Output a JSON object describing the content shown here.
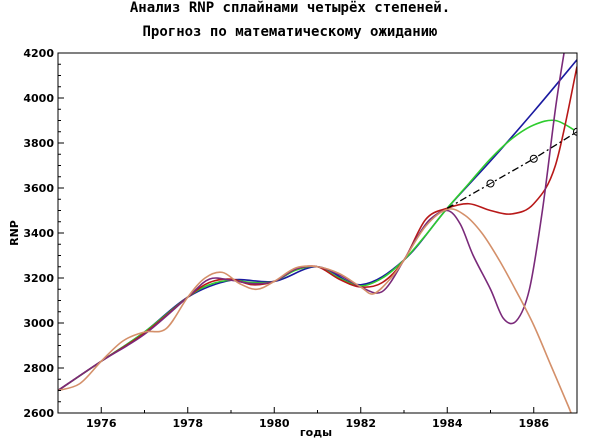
{
  "chart_data": {
    "type": "line",
    "title": "Анализ RNP сплайнами четырёх степеней.",
    "subtitle": "Прогноз по математическому ожиданию",
    "xlabel": "годы",
    "ylabel": "RNP",
    "xlim": [
      1975,
      1987
    ],
    "ylim": [
      2600,
      4200
    ],
    "xticks": [
      "1976",
      "1978",
      "1980",
      "1982",
      "1984",
      "1986"
    ],
    "yticks": [
      "2600",
      "2800",
      "3000",
      "3200",
      "3400",
      "3600",
      "3800",
      "4000",
      "4200"
    ],
    "grid": false,
    "legend": "none",
    "series": [
      {
        "color": "#1a1aa0",
        "style": "solid",
        "x": [
          1975,
          1976,
          1977,
          1978,
          1979,
          1980,
          1981,
          1982,
          1983,
          1984,
          1985,
          1986,
          1987
        ],
        "y": [
          2700,
          2830,
          2960,
          3115,
          3190,
          3185,
          3250,
          3170,
          3280,
          3510,
          3720,
          3940,
          4170
        ]
      },
      {
        "color": "#2ecc2e",
        "style": "solid",
        "x": [
          1975,
          1976,
          1977,
          1978,
          1978.5,
          1979,
          1979.5,
          1980,
          1980.5,
          1981,
          1981.5,
          1982,
          1982.5,
          1983,
          1983.5,
          1984,
          1984.5,
          1985,
          1985.5,
          1986,
          1986.5,
          1987
        ],
        "y": [
          2700,
          2830,
          2960,
          3115,
          3170,
          3190,
          3180,
          3185,
          3235,
          3250,
          3200,
          3165,
          3200,
          3280,
          3390,
          3510,
          3620,
          3730,
          3820,
          3880,
          3900,
          3850
        ]
      },
      {
        "color": "#b81818",
        "style": "solid",
        "x": [
          1975,
          1976,
          1977,
          1978,
          1978.5,
          1979,
          1979.5,
          1980,
          1980.5,
          1981,
          1981.5,
          1982,
          1982.5,
          1983,
          1983.5,
          1984,
          1984.5,
          1985,
          1985.5,
          1986,
          1986.5,
          1987
        ],
        "y": [
          2700,
          2830,
          2955,
          3115,
          3180,
          3195,
          3170,
          3185,
          3240,
          3250,
          3195,
          3160,
          3180,
          3280,
          3460,
          3510,
          3530,
          3500,
          3485,
          3530,
          3700,
          4140
        ]
      },
      {
        "color": "#7a2a7a",
        "style": "solid",
        "x": [
          1975,
          1976,
          1977,
          1978,
          1978.5,
          1979,
          1979.5,
          1980,
          1980.5,
          1981,
          1981.5,
          1982,
          1982.5,
          1983,
          1983.3,
          1983.6,
          1984,
          1984.3,
          1984.6,
          1985,
          1985.3,
          1985.6,
          1985.9,
          1986.2,
          1986.5,
          1986.7
        ],
        "y": [
          2700,
          2830,
          2950,
          3115,
          3195,
          3190,
          3175,
          3185,
          3240,
          3250,
          3215,
          3160,
          3140,
          3280,
          3380,
          3460,
          3500,
          3440,
          3300,
          3150,
          3020,
          3010,
          3150,
          3500,
          3950,
          4200
        ]
      },
      {
        "color": "#d4906a",
        "style": "solid",
        "x": [
          1975,
          1975.5,
          1976,
          1976.5,
          1977,
          1977.5,
          1978,
          1978.4,
          1978.8,
          1979.2,
          1979.6,
          1980,
          1980.5,
          1981,
          1981.5,
          1982,
          1982.3,
          1982.7,
          1983,
          1983.5,
          1984,
          1984.4,
          1984.8,
          1985.2,
          1985.6,
          1986,
          1986.4,
          1986.8,
          1986.9
        ],
        "y": [
          2700,
          2730,
          2830,
          2920,
          2960,
          2975,
          3115,
          3200,
          3225,
          3175,
          3150,
          3185,
          3245,
          3250,
          3220,
          3160,
          3130,
          3200,
          3280,
          3430,
          3505,
          3480,
          3400,
          3280,
          3140,
          2990,
          2810,
          2630,
          2580
        ]
      },
      {
        "color": "#000000",
        "style": "dashdot",
        "markers": true,
        "x": [
          1984,
          1985,
          1986,
          1987
        ],
        "y": [
          3510,
          3620,
          3730,
          3850
        ]
      }
    ]
  }
}
